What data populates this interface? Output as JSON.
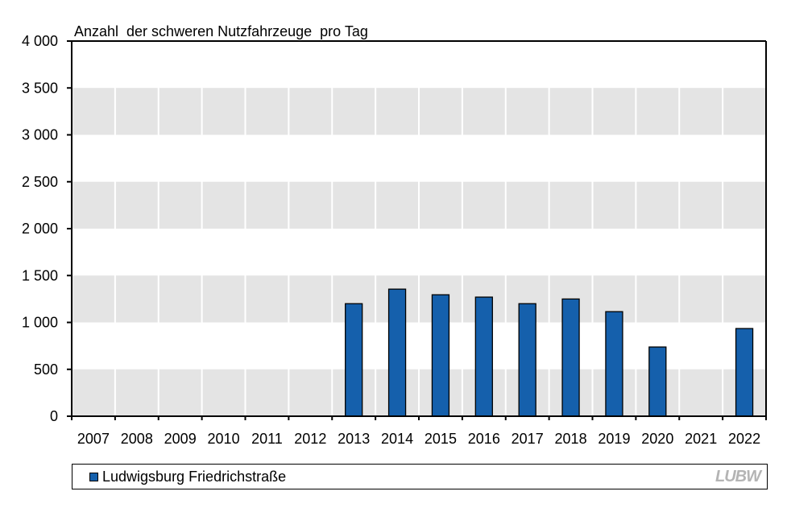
{
  "chart_data": {
    "type": "bar",
    "title": "Anzahl  der schweren Nutzfahrzeuge  pro Tag",
    "xlabel": "",
    "ylabel": "Anzahl der schweren Nutzfahrzeuge pro Tag",
    "categories": [
      "2007",
      "2008",
      "2009",
      "2010",
      "2011",
      "2012",
      "2013",
      "2014",
      "2015",
      "2016",
      "2017",
      "2018",
      "2019",
      "2020",
      "2021",
      "2022"
    ],
    "series": [
      {
        "name": "Ludwigsburg Friedrichstraße",
        "color": "#1560ac",
        "values": [
          null,
          null,
          null,
          null,
          null,
          null,
          1200,
          1355,
          1295,
          1270,
          1200,
          1250,
          1115,
          738,
          null,
          935
        ]
      }
    ],
    "ylim": [
      0,
      4000
    ],
    "yticks": [
      0,
      500,
      1000,
      1500,
      2000,
      2500,
      3000,
      3500,
      4000
    ],
    "ytick_labels": [
      "0",
      "500",
      "1 000",
      "1 500",
      "2 000",
      "2 500",
      "3 000",
      "3 500",
      "4 000"
    ],
    "grid": "alternating horizontal bands",
    "band_color": "#e4e4e4",
    "legend_position": "bottom"
  },
  "legend": {
    "label": "Ludwigsburg Friedrichstraße"
  },
  "logo": {
    "text": "LUBW"
  }
}
